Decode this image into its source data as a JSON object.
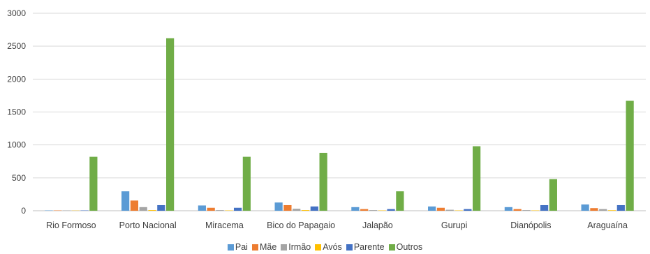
{
  "chart_data": {
    "type": "bar",
    "title": "",
    "xlabel": "",
    "ylabel": "",
    "ylim": [
      0,
      3000
    ],
    "yticks": [
      0,
      500,
      1000,
      1500,
      2000,
      2500,
      3000
    ],
    "grid": true,
    "legend_position": "bottom",
    "categories": [
      "Rio Formoso",
      "Porto Nacional",
      "Miracema",
      "Bico do Papagaio",
      "Jalapão",
      "Gurupi",
      "Dianópolis",
      "Araguaína"
    ],
    "series": [
      {
        "name": "Pai",
        "color": "#5b9bd5",
        "values": [
          5,
          295,
          80,
          125,
          55,
          65,
          55,
          95
        ]
      },
      {
        "name": "Mãe",
        "color": "#ed7d31",
        "values": [
          5,
          155,
          45,
          85,
          25,
          45,
          25,
          40
        ]
      },
      {
        "name": "Irmão",
        "color": "#a5a5a5",
        "values": [
          5,
          55,
          10,
          30,
          10,
          15,
          10,
          25
        ]
      },
      {
        "name": "Avós",
        "color": "#ffc000",
        "values": [
          3,
          10,
          5,
          10,
          5,
          5,
          5,
          8
        ]
      },
      {
        "name": "Parente",
        "color": "#4472c4",
        "values": [
          5,
          85,
          45,
          65,
          25,
          25,
          85,
          85
        ]
      },
      {
        "name": "Outros",
        "color": "#70ad47",
        "values": [
          820,
          2620,
          820,
          880,
          295,
          980,
          480,
          1670
        ]
      }
    ]
  }
}
